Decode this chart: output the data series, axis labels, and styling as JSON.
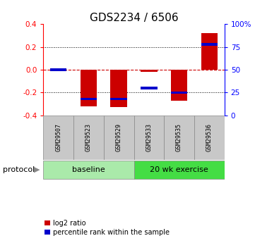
{
  "title": "GDS2234 / 6506",
  "samples": [
    "GSM29507",
    "GSM29523",
    "GSM29529",
    "GSM29533",
    "GSM29535",
    "GSM29536"
  ],
  "log2_ratio": [
    0.0,
    -0.32,
    -0.33,
    -0.02,
    -0.27,
    0.32
  ],
  "percentile_rank": [
    50.0,
    18.0,
    18.0,
    30.0,
    25.0,
    78.0
  ],
  "ylim": [
    -0.4,
    0.4
  ],
  "yticks_left": [
    -0.4,
    -0.2,
    0.0,
    0.2,
    0.4
  ],
  "yticks_right_vals": [
    0,
    25,
    50,
    75,
    100
  ],
  "yticks_right_labels": [
    "0",
    "25",
    "50",
    "75",
    "100%"
  ],
  "bar_color_red": "#CC0000",
  "bar_color_blue": "#0000CC",
  "bar_width": 0.55,
  "blue_bar_height": 0.022,
  "hline_y0_color": "#CC0000",
  "dotline_color": "black",
  "title_fontsize": 11,
  "tick_fontsize": 7.5,
  "sample_fontsize": 6,
  "proto_fontsize": 8,
  "legend_fontsize": 7,
  "protocol_label": "protocol",
  "legend_red": "log2 ratio",
  "legend_blue": "percentile rank within the sample",
  "bg_color": "white",
  "plot_bg": "white",
  "baseline_color": "#AAEAAA",
  "exercise_color": "#44DD44",
  "sample_box_color": "#C8C8C8"
}
